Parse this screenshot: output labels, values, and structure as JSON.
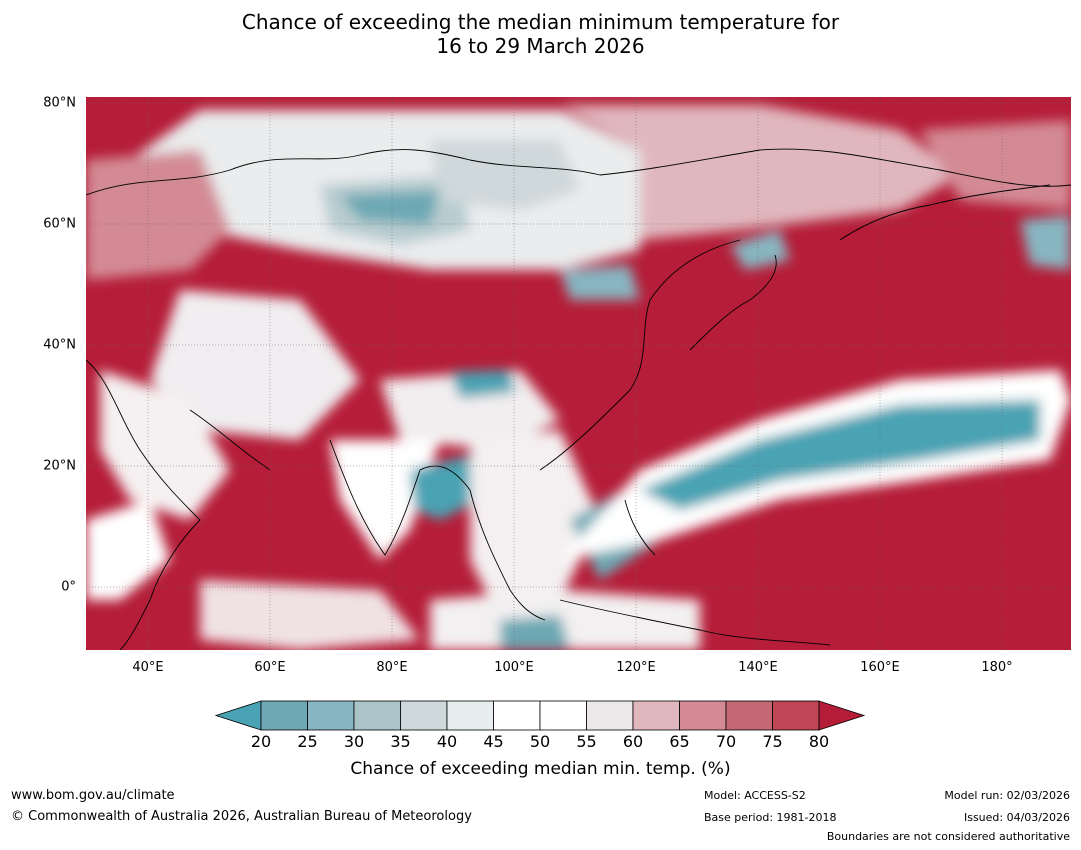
{
  "title": {
    "line1": "Chance of exceeding the median minimum temperature for",
    "line2": "16 to 29 March 2026"
  },
  "map": {
    "lat_labels": [
      "80°N",
      "60°N",
      "40°N",
      "20°N",
      "0°"
    ],
    "lat_values": [
      80,
      60,
      40,
      20,
      0
    ],
    "lon_labels": [
      "40°E",
      "60°E",
      "80°E",
      "100°E",
      "120°E",
      "140°E",
      "160°E",
      "180°"
    ],
    "lon_values": [
      40,
      60,
      80,
      100,
      120,
      140,
      160,
      180
    ],
    "lon_range": [
      30,
      191
    ],
    "lat_range": [
      -10,
      81
    ],
    "colors": {
      "very_high": "#b51d38",
      "high": "#c45060",
      "mid_high": "#e0b7bd",
      "neutral": "#ffffff",
      "mid_low": "#d0dadd",
      "low": "#4aa3b3"
    }
  },
  "colorbar": {
    "ticks": [
      "20",
      "25",
      "30",
      "35",
      "40",
      "45",
      "50",
      "55",
      "60",
      "65",
      "70",
      "75",
      "80"
    ],
    "colors": [
      "#6da8b4",
      "#87b5c1",
      "#abc4ca",
      "#cfd8da",
      "#e7eef0",
      "#ffffff",
      "#ffffff",
      "#ece7e8",
      "#e0b7bd",
      "#d38a94",
      "#c56875",
      "#bf4654"
    ],
    "low_extend_color": "#49a3b4",
    "high_extend_color": "#b41c37",
    "label": "Chance of exceeding median min. temp. (%)"
  },
  "footer": {
    "website": "www.bom.gov.au/climate",
    "copyright": "© Commonwealth of Australia 2026, Australian Bureau of Meteorology",
    "model": "Model: ACCESS-S2",
    "base_period": "Base period: 1981-2018",
    "model_run": "Model run: 02/03/2026",
    "issued": "Issued: 04/03/2026",
    "disclaimer": "Boundaries are not considered authoritative"
  }
}
